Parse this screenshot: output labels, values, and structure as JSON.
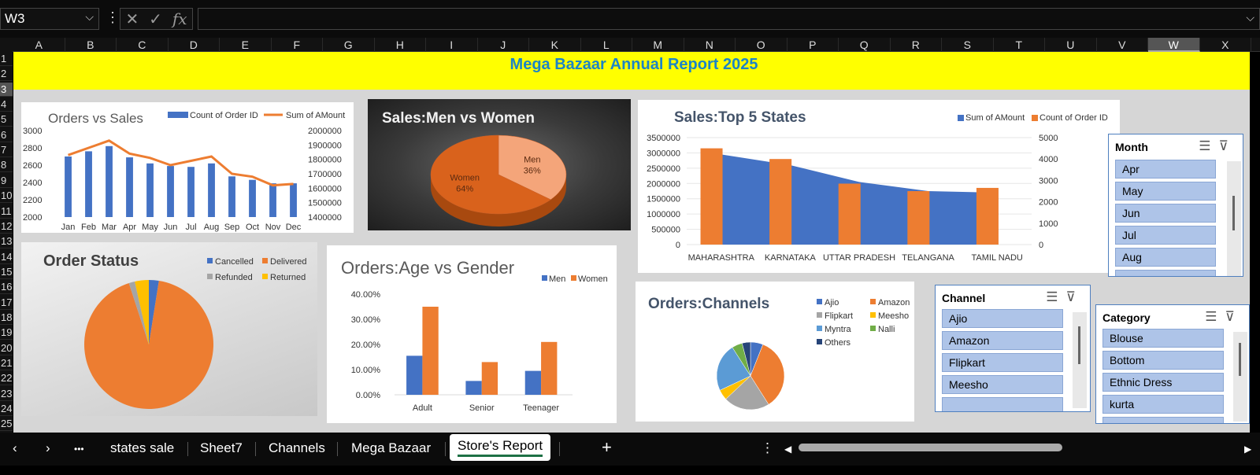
{
  "formula_bar": {
    "name_box": "W3",
    "formula": "",
    "fx": "fx"
  },
  "columns": [
    "A",
    "B",
    "C",
    "D",
    "E",
    "F",
    "G",
    "H",
    "I",
    "J",
    "K",
    "L",
    "M",
    "N",
    "O",
    "P",
    "Q",
    "R",
    "S",
    "T",
    "U",
    "V",
    "W",
    "X"
  ],
  "selected_column": "W",
  "rows": [
    "1",
    "2",
    "3",
    "4",
    "5",
    "6",
    "7",
    "8",
    "9",
    "10",
    "11",
    "12",
    "13",
    "14",
    "15",
    "16",
    "17",
    "18",
    "19",
    "20",
    "21",
    "22",
    "23",
    "24",
    "25"
  ],
  "selected_row": "3",
  "banner": {
    "title": "Mega Bazaar Annual Report 2025"
  },
  "colors": {
    "blue": "#4472c4",
    "orange": "#ed7d31",
    "gray": "#a5a5a5",
    "gold": "#ffc000",
    "light_blue": "#5b9bd5",
    "green": "#70ad47",
    "navy": "#264478",
    "banner_bg": "#ffff00",
    "banner_text": "#1c84c6"
  },
  "chart_data": [
    {
      "id": "orders_vs_sales",
      "type": "bar",
      "title": "Orders vs Sales",
      "categories": [
        "Jan",
        "Feb",
        "Mar",
        "Apr",
        "May",
        "Jun",
        "Jul",
        "Aug",
        "Sep",
        "Oct",
        "Nov",
        "Dec"
      ],
      "series": [
        {
          "name": "Count of Order ID",
          "kind": "bar",
          "axis": "left",
          "values": [
            2700,
            2760,
            2820,
            2690,
            2620,
            2590,
            2580,
            2620,
            2470,
            2430,
            2390,
            2390
          ]
        },
        {
          "name": "Sum of AMount",
          "kind": "line",
          "axis": "right",
          "values": [
            1830000,
            1880000,
            1930000,
            1840000,
            1810000,
            1760000,
            1790000,
            1820000,
            1700000,
            1680000,
            1620000,
            1630000
          ]
        }
      ],
      "ylim": [
        2000,
        3000
      ],
      "y2lim": [
        1400000,
        2000000
      ],
      "yticks": [
        "3000",
        "2800",
        "2600",
        "2400",
        "2200",
        "2000"
      ],
      "y2ticks": [
        "2000000",
        "1900000",
        "1800000",
        "1700000",
        "1600000",
        "1500000",
        "1400000"
      ],
      "legend": "top-right"
    },
    {
      "id": "sales_men_women",
      "type": "pie",
      "title": "Sales:Men vs Women",
      "labels": [
        "Men",
        "Women"
      ],
      "values": [
        36,
        64
      ],
      "data_labels": [
        "36%",
        "64%"
      ],
      "style": "3d"
    },
    {
      "id": "top_states",
      "type": "bar",
      "title": "Sales:Top 5 States",
      "categories": [
        "MAHARASHTRA",
        "KARNATAKA",
        "UTTAR PRADESH",
        "TELANGANA",
        "TAMIL NADU"
      ],
      "series": [
        {
          "name": "Sum of AMount",
          "kind": "area",
          "axis": "left",
          "values": [
            2950000,
            2600000,
            2050000,
            1750000,
            1700000
          ]
        },
        {
          "name": "Count of Order ID",
          "kind": "bar",
          "axis": "right",
          "values": [
            4500,
            4000,
            2850,
            2500,
            2650
          ]
        }
      ],
      "ylim": [
        0,
        3500000
      ],
      "y2lim": [
        0,
        5000
      ],
      "yticks": [
        "3500000",
        "3000000",
        "2500000",
        "2000000",
        "1500000",
        "1000000",
        "500000",
        "0"
      ],
      "y2ticks": [
        "5000",
        "4000",
        "3000",
        "2000",
        "1000",
        "0"
      ],
      "legend": "top-right"
    },
    {
      "id": "order_status",
      "type": "pie",
      "title": "Order Status",
      "labels": [
        "Cancelled",
        "Delivered",
        "Refunded",
        "Returned"
      ],
      "values": [
        2.5,
        92.5,
        1.5,
        3.5
      ],
      "legend": "top-right"
    },
    {
      "id": "age_gender",
      "type": "bar",
      "title": "Orders:Age vs Gender",
      "categories": [
        "Adult",
        "Senior",
        "Teenager"
      ],
      "series": [
        {
          "name": "Men",
          "values": [
            15.5,
            5.5,
            9.5
          ]
        },
        {
          "name": "Women",
          "values": [
            35.0,
            13.0,
            21.0
          ]
        }
      ],
      "ylim": [
        0,
        40
      ],
      "yticks": [
        "40.00%",
        "30.00%",
        "20.00%",
        "10.00%",
        "0.00%"
      ],
      "legend": "top-right"
    },
    {
      "id": "channels",
      "type": "pie",
      "title": "Orders:Channels",
      "labels": [
        "Ajio",
        "Amazon",
        "Flipkart",
        "Meesho",
        "Myntra",
        "Nalli",
        "Others"
      ],
      "values": [
        6,
        35,
        22,
        5,
        23,
        5,
        4
      ],
      "legend": "top-right"
    }
  ],
  "slicers": {
    "month": {
      "title": "Month",
      "items": [
        "Apr",
        "May",
        "Jun",
        "Jul",
        "Aug"
      ]
    },
    "channel": {
      "title": "Channel",
      "items": [
        "Ajio",
        "Amazon",
        "Flipkart",
        "Meesho"
      ]
    },
    "category": {
      "title": "Category",
      "items": [
        "Blouse",
        "Bottom",
        "Ethnic Dress",
        "kurta"
      ]
    }
  },
  "sheet_tabs": [
    "states sale",
    "Sheet7",
    "Channels",
    "Mega Bazaar",
    "Store's Report"
  ],
  "active_tab": "Store's Report",
  "nav": {
    "prev": "‹",
    "next": "›",
    "more": "•••",
    "add": "+",
    "options": "⋮"
  }
}
